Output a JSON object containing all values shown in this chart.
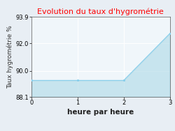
{
  "title": "Evolution du taux d'hygrométrie",
  "title_color": "#ff0000",
  "xlabel": "heure par heure",
  "ylabel": "Taux hygrométrie %",
  "x": [
    0,
    1,
    2,
    3
  ],
  "y": [
    89.3,
    89.3,
    89.3,
    92.7
  ],
  "ylim": [
    88.1,
    93.9
  ],
  "xlim": [
    0,
    3
  ],
  "yticks": [
    88.1,
    90.0,
    92.0,
    93.9
  ],
  "xticks": [
    0,
    1,
    2,
    3
  ],
  "line_color": "#87ceeb",
  "fill_color": "#add8e6",
  "fill_alpha": 0.6,
  "bg_color": "#e8eef4",
  "plot_bg_color": "#f0f6fa",
  "grid_color": "#ffffff",
  "title_fontsize": 8,
  "label_fontsize": 6.5,
  "tick_fontsize": 6,
  "xlabel_fontsize": 7.5,
  "xlabel_fontweight": "bold"
}
